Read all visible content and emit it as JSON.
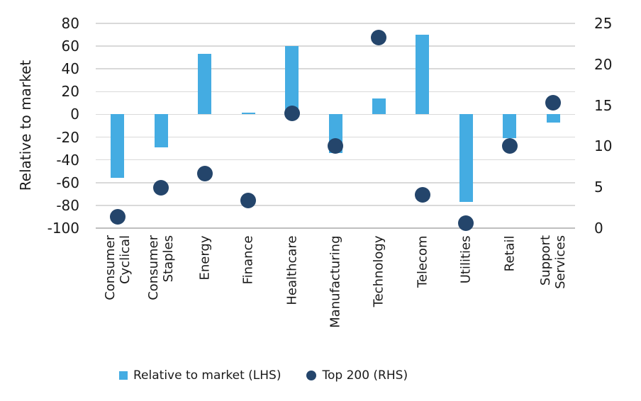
{
  "chart_data": {
    "type": "combo-bar-scatter",
    "title": "",
    "categories": [
      "Consumer\nCyclical",
      "Consumer\nStaples",
      "Energy",
      "Finance",
      "Healthcare",
      "Manufacturing",
      "Technology",
      "Telecom",
      "Utilities",
      "Retail",
      "Support\nServices"
    ],
    "series": [
      {
        "name": "Relative to market (LHS)",
        "type": "bar",
        "axis": "left",
        "color": "#44ace2",
        "values": [
          -56,
          -29,
          53,
          1.5,
          60,
          -34,
          14,
          70,
          -77,
          -21,
          -7
        ]
      },
      {
        "name": "Top 200 (RHS)",
        "type": "scatter",
        "axis": "right",
        "color": "#24456b",
        "values": [
          1.4,
          4.9,
          6.7,
          3.4,
          14,
          10,
          23.3,
          4.1,
          0.6,
          10,
          15.3
        ]
      }
    ],
    "left_axis": {
      "title": "Relative to market",
      "min": -100,
      "max": 80,
      "tick_step": 20,
      "ticks": [
        80,
        60,
        40,
        20,
        0,
        -20,
        -40,
        -60,
        -80,
        -100
      ]
    },
    "right_axis": {
      "min": 0,
      "max": 25,
      "tick_step": 5,
      "ticks": [
        25,
        20,
        15,
        10,
        5,
        0
      ]
    },
    "grid": true,
    "legend_position": "bottom",
    "colors": {
      "bar": "#44ace2",
      "dot": "#24456b",
      "gridline": "#d9d9d9",
      "axis_line": "#bfbfbf",
      "text": "#1a1a1a",
      "background": "#ffffff"
    }
  }
}
